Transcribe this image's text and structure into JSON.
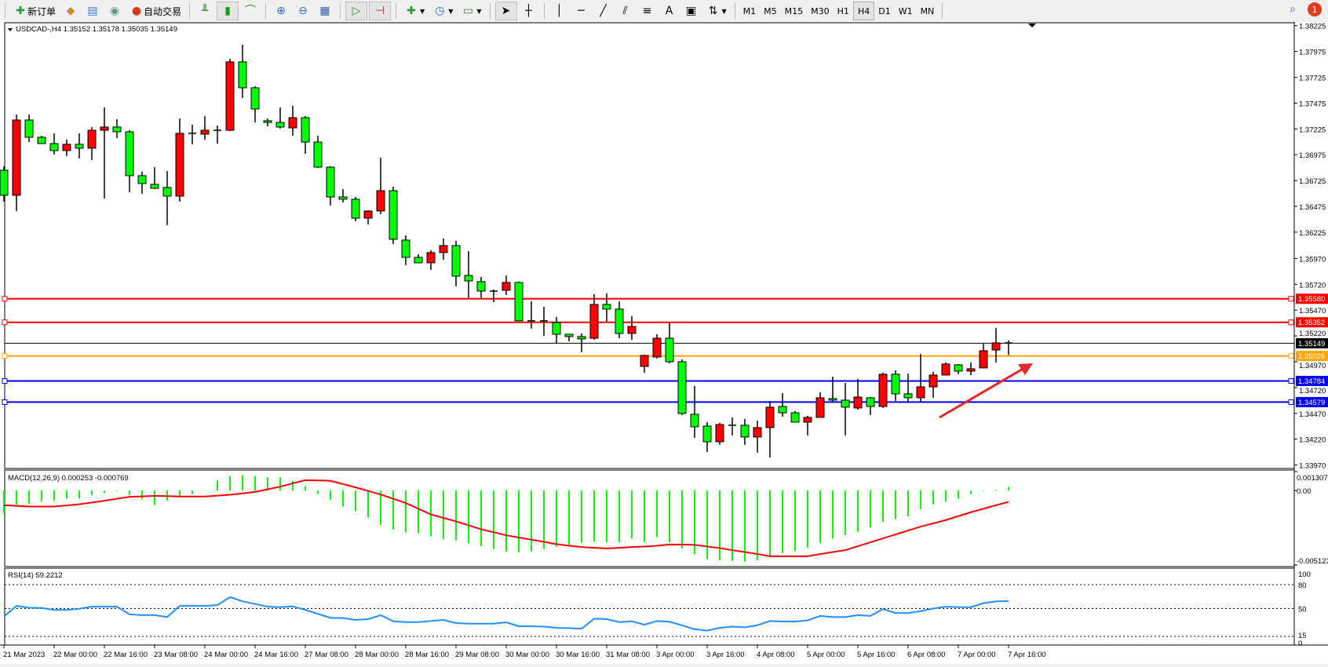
{
  "toolbar": {
    "new_order": "新订单",
    "auto_trade": "自动交易",
    "icons": [
      "new-order-icon",
      "market-watch-icon",
      "navigator-icon",
      "signals-icon",
      "auto-trade-icon",
      "bar-chart-icon",
      "candlestick-icon",
      "line-chart-icon",
      "zoom-in-icon",
      "zoom-out-icon",
      "tile-windows-icon",
      "auto-scroll-icon",
      "chart-shift-icon",
      "indicators-icon",
      "periods-icon",
      "templates-icon",
      "cursor-icon",
      "crosshair-icon",
      "vertical-line-icon",
      "horizontal-line-icon",
      "trendline-icon",
      "equidistant-channel-icon",
      "fibonacci-icon",
      "text-icon",
      "text-label-icon",
      "arrows-icon"
    ],
    "text_tool": "A",
    "timeframes": [
      "M1",
      "M5",
      "M15",
      "M30",
      "H1",
      "H4",
      "D1",
      "W1",
      "MN"
    ],
    "active_timeframe": "H4",
    "notification_count": "1"
  },
  "chart_data": {
    "type": "candlestick",
    "title": "USDCAD-,H4  1.35152 1.35178 1.35035 1.35149",
    "symbol": "USDCAD-",
    "timeframe": "H4",
    "colors": {
      "bull": "#ff0000",
      "bear": "#00ff00",
      "wick": "#000000"
    },
    "ylim": [
      1.3397,
      1.38225
    ],
    "y_ticks": [
      "1.38225",
      "1.37975",
      "1.37725",
      "1.37475",
      "1.37225",
      "1.36975",
      "1.36725",
      "1.36475",
      "1.36225",
      "1.35970",
      "1.35720",
      "1.35470",
      "1.35220",
      "1.34970",
      "1.34720",
      "1.34470",
      "1.34220",
      "1.33970"
    ],
    "x_ticks": [
      {
        "i": 0,
        "label": "21 Mar 2023"
      },
      {
        "i": 4,
        "label": "22 Mar 00:00"
      },
      {
        "i": 8,
        "label": "22 Mar 16:00"
      },
      {
        "i": 12,
        "label": "23 Mar 08:00"
      },
      {
        "i": 16,
        "label": "24 Mar 00:00"
      },
      {
        "i": 20,
        "label": "24 Mar 16:00"
      },
      {
        "i": 24,
        "label": "27 Mar 08:00"
      },
      {
        "i": 28,
        "label": "28 Mar 00:00"
      },
      {
        "i": 32,
        "label": "28 Mar 16:00"
      },
      {
        "i": 36,
        "label": "29 Mar 08:00"
      },
      {
        "i": 40,
        "label": "30 Mar 00:00"
      },
      {
        "i": 44,
        "label": "30 Mar 16:00"
      },
      {
        "i": 48,
        "label": "31 Mar 08:00"
      },
      {
        "i": 52,
        "label": "3 Apr 00:00"
      },
      {
        "i": 56,
        "label": "3 Apr 16:00"
      },
      {
        "i": 60,
        "label": "4 Apr 08:00"
      },
      {
        "i": 64,
        "label": "5 Apr 00:00"
      },
      {
        "i": 68,
        "label": "5 Apr 16:00"
      },
      {
        "i": 72,
        "label": "6 Apr 08:00"
      },
      {
        "i": 76,
        "label": "7 Apr 00:00"
      },
      {
        "i": 80,
        "label": "7 Apr 16:00"
      }
    ],
    "ohlc": [
      [
        1.36825,
        1.36863,
        1.36521,
        1.36582
      ],
      [
        1.36582,
        1.37364,
        1.3643,
        1.37311
      ],
      [
        1.37311,
        1.37364,
        1.37098,
        1.37144
      ],
      [
        1.37144,
        1.37159,
        1.37083,
        1.37083
      ],
      [
        1.37083,
        1.37182,
        1.36977,
        1.37015
      ],
      [
        1.37015,
        1.37121,
        1.36962,
        1.37076
      ],
      [
        1.37076,
        1.37182,
        1.36939,
        1.37038
      ],
      [
        1.37038,
        1.37243,
        1.36924,
        1.37212
      ],
      [
        1.37212,
        1.37433,
        1.36551,
        1.37243
      ],
      [
        1.37243,
        1.37319,
        1.37136,
        1.37197
      ],
      [
        1.37197,
        1.37212,
        1.36612,
        1.36772
      ],
      [
        1.36772,
        1.3681,
        1.36597,
        1.36696
      ],
      [
        1.36688,
        1.36855,
        1.36642,
        1.3665
      ],
      [
        1.36658,
        1.36817,
        1.36293,
        1.36574
      ],
      [
        1.36574,
        1.37326,
        1.36521,
        1.37182
      ],
      [
        1.37182,
        1.37266,
        1.37076,
        1.37174
      ],
      [
        1.37174,
        1.37349,
        1.37121,
        1.37212
      ],
      [
        1.37212,
        1.37258,
        1.37083,
        1.37212
      ],
      [
        1.37212,
        1.37904,
        1.37205,
        1.37874
      ],
      [
        1.37874,
        1.38041,
        1.37524,
        1.37623
      ],
      [
        1.37623,
        1.37638,
        1.37288,
        1.37418
      ],
      [
        1.37304,
        1.37326,
        1.3725,
        1.37288
      ],
      [
        1.37288,
        1.37433,
        1.37228,
        1.37243
      ],
      [
        1.37235,
        1.37448,
        1.37159,
        1.37334
      ],
      [
        1.37334,
        1.37349,
        1.36984,
        1.37098
      ],
      [
        1.37098,
        1.37159,
        1.36848,
        1.36855
      ],
      [
        1.36855,
        1.36863,
        1.36483,
        1.36566
      ],
      [
        1.36566,
        1.36642,
        1.36513,
        1.36544
      ],
      [
        1.36544,
        1.36566,
        1.36331,
        1.36361
      ],
      [
        1.36361,
        1.36437,
        1.363,
        1.3643
      ],
      [
        1.3643,
        1.36946,
        1.36399,
        1.36627
      ],
      [
        1.36627,
        1.36665,
        1.3611,
        1.36156
      ],
      [
        1.36148,
        1.36194,
        1.35905,
        1.35981
      ],
      [
        1.35981,
        1.36012,
        1.35928,
        1.35928
      ],
      [
        1.35928,
        1.3605,
        1.3586,
        1.36027
      ],
      [
        1.36027,
        1.36164,
        1.35958,
        1.36095
      ],
      [
        1.36095,
        1.36141,
        1.357,
        1.35799
      ],
      [
        1.35806,
        1.36042,
        1.35586,
        1.35753
      ],
      [
        1.35746,
        1.35791,
        1.35586,
        1.35654
      ],
      [
        1.35654,
        1.3567,
        1.35548,
        1.35654
      ],
      [
        1.35662,
        1.35806,
        1.35616,
        1.35738
      ],
      [
        1.35738,
        1.35746,
        1.35366,
        1.35366
      ],
      [
        1.35366,
        1.35556,
        1.3529,
        1.35366
      ],
      [
        1.35366,
        1.35502,
        1.35221,
        1.35366
      ],
      [
        1.3535,
        1.35404,
        1.35145,
        1.35236
      ],
      [
        1.35236,
        1.35236,
        1.35168,
        1.35214
      ],
      [
        1.35214,
        1.35244,
        1.35062,
        1.35191
      ],
      [
        1.35198,
        1.35624,
        1.35183,
        1.35525
      ],
      [
        1.35525,
        1.35632,
        1.35358,
        1.3548
      ],
      [
        1.3548,
        1.35556,
        1.35198,
        1.35244
      ],
      [
        1.35244,
        1.35411,
        1.35183,
        1.35312
      ],
      [
        1.34925,
        1.35039,
        1.34864,
        1.35031
      ],
      [
        1.35016,
        1.35236,
        1.35001,
        1.35198
      ],
      [
        1.35198,
        1.3535,
        1.34955,
        1.3497
      ],
      [
        1.3497,
        1.34993,
        1.34454,
        1.34469
      ],
      [
        1.34461,
        1.34735,
        1.34233,
        1.3434
      ],
      [
        1.34347,
        1.34385,
        1.34096,
        1.34195
      ],
      [
        1.34195,
        1.34378,
        1.34165,
        1.34362
      ],
      [
        1.34355,
        1.34431,
        1.34256,
        1.34355
      ],
      [
        1.34355,
        1.34416,
        1.34165,
        1.34241
      ],
      [
        1.34241,
        1.344,
        1.34089,
        1.34332
      ],
      [
        1.34332,
        1.3459,
        1.34043,
        1.3453
      ],
      [
        1.34537,
        1.34666,
        1.34438,
        1.34476
      ],
      [
        1.34476,
        1.34492,
        1.34385,
        1.34385
      ],
      [
        1.34385,
        1.34446,
        1.34256,
        1.34431
      ],
      [
        1.34431,
        1.34674,
        1.34431,
        1.34621
      ],
      [
        1.34613,
        1.34826,
        1.34583,
        1.34598
      ],
      [
        1.34598,
        1.34765,
        1.34256,
        1.3453
      ],
      [
        1.34522,
        1.34803,
        1.34507,
        1.34628
      ],
      [
        1.34621,
        1.34628,
        1.34454,
        1.34537
      ],
      [
        1.34537,
        1.34864,
        1.34522,
        1.34849
      ],
      [
        1.34849,
        1.34887,
        1.3459,
        1.34659
      ],
      [
        1.34659,
        1.34856,
        1.34583,
        1.34621
      ],
      [
        1.34621,
        1.35046,
        1.34583,
        1.34727
      ],
      [
        1.34727,
        1.34872,
        1.34621,
        1.34841
      ],
      [
        1.34841,
        1.34963,
        1.34841,
        1.34948
      ],
      [
        1.3494,
        1.34948,
        1.34849,
        1.34879
      ],
      [
        1.34879,
        1.34963,
        1.34841,
        1.34902
      ],
      [
        1.3491,
        1.35153,
        1.3491,
        1.35077
      ],
      [
        1.35084,
        1.35297,
        1.34963,
        1.35153
      ],
      [
        1.35152,
        1.35178,
        1.35035,
        1.35149
      ]
    ],
    "current_price": {
      "value": 1.35149,
      "label": "1.35149",
      "color": "#000000"
    },
    "hlines": [
      {
        "value": 1.3558,
        "label": "1.35580",
        "color": "#ff0000"
      },
      {
        "value": 1.35352,
        "label": "1.35352",
        "color": "#ff0000"
      },
      {
        "value": 1.35026,
        "label": "1.35026",
        "color": "#ffa500"
      },
      {
        "value": 1.34784,
        "label": "1.34784",
        "color": "#0000ff"
      },
      {
        "value": 1.34579,
        "label": "1.34579",
        "color": "#0000ff"
      }
    ],
    "annotation_arrow": {
      "color": "#e8262a",
      "direction": "up-right"
    },
    "macd": {
      "title": "MACD(12,26,9) 0.000253 -0.000769",
      "ylim": [
        -0.005123,
        0.001307
      ],
      "y_ticks": [
        "0.001307",
        "0.00",
        "-0.005123"
      ],
      "hist_color": "#00ff00",
      "signal_color": "#ff0000",
      "histogram": [
        -0.00158,
        -0.00095,
        -0.0009,
        -0.00074,
        -0.00068,
        -0.00054,
        -0.00054,
        -0.00031,
        -0.00016,
        -5e-05,
        -0.00031,
        -0.00059,
        -0.001,
        -0.00068,
        -0.00038,
        -0.00023,
        -2e-05,
        0.0007,
        0.001,
        0.00106,
        0.001,
        0.00092,
        0.00092,
        0.00067,
        0.00031,
        -0.00023,
        -0.00063,
        -0.0011,
        -0.0014,
        -0.00185,
        -0.00236,
        -0.00268,
        -0.00288,
        -0.00293,
        -0.00315,
        -0.00333,
        -0.00344,
        -0.00365,
        -0.00383,
        -0.00401,
        -0.00419,
        -0.00425,
        -0.00419,
        -0.00401,
        -0.00387,
        -0.00376,
        -0.0036,
        -0.00353,
        -0.00356,
        -0.00356,
        -0.00329,
        -0.00353,
        -0.0032,
        -0.00356,
        -0.00398,
        -0.00437,
        -0.00473,
        -0.00479,
        -0.00484,
        -0.00488,
        -0.00479,
        -0.00452,
        -0.0043,
        -0.00416,
        -0.00392,
        -0.0036,
        -0.00329,
        -0.00306,
        -0.00283,
        -0.00254,
        -0.00216,
        -0.00196,
        -0.00178,
        -0.00128,
        -0.00095,
        -0.00074,
        -0.00056,
        -0.00023,
        -5e-05,
        5e-05,
        0.000253
      ],
      "signal": [
        -0.00101,
        -0.00105,
        -0.0011,
        -0.0011,
        -0.0011,
        -0.00102,
        -0.00094,
        -0.00082,
        -0.0007,
        -0.00056,
        -0.00043,
        -0.0004,
        -0.00036,
        -0.00038,
        -0.00041,
        -0.00041,
        -0.00041,
        -0.00035,
        -0.00029,
        -0.00019,
        -9e-05,
        9e-05,
        0.00027,
        0.0005,
        0.00072,
        0.0007,
        0.00067,
        0.00045,
        0.00022,
        -2e-05,
        -0.00027,
        -0.00056,
        -0.00086,
        -0.00125,
        -0.00164,
        -0.00188,
        -0.00212,
        -0.00239,
        -0.00266,
        -0.00287,
        -0.00308,
        -0.00323,
        -0.00338,
        -0.00353,
        -0.00369,
        -0.00379,
        -0.00389,
        -0.00394,
        -0.00398,
        -0.00394,
        -0.00389,
        -0.00385,
        -0.0038,
        -0.00371,
        -0.00372,
        -0.00374,
        -0.00385,
        -0.00396,
        -0.0041,
        -0.00423,
        -0.00437,
        -0.00452,
        -0.00452,
        -0.00452,
        -0.00452,
        -0.00437,
        -0.00423,
        -0.0041,
        -0.00383,
        -0.00356,
        -0.00329,
        -0.00302,
        -0.00275,
        -0.00248,
        -0.00226,
        -0.00203,
        -0.00176,
        -0.00149,
        -0.00125,
        -0.00101,
        -0.000769
      ]
    },
    "rsi": {
      "title": "RSI(14) 59.2212",
      "ylim": [
        0,
        100
      ],
      "levels": [
        80,
        50,
        15
      ],
      "y_ticks": [
        "100",
        "80",
        "50",
        "15",
        "0"
      ],
      "color": "#1e90ff",
      "values": [
        40,
        53.3,
        51,
        50.7,
        48.3,
        48.3,
        49.7,
        52.3,
        52.3,
        52.3,
        42.7,
        41.7,
        41.7,
        39.3,
        53.3,
        53.3,
        53.3,
        54.3,
        64.3,
        59,
        55.7,
        52.3,
        51.7,
        52.7,
        48.3,
        43.3,
        38.3,
        38,
        35.7,
        36.7,
        41.7,
        34,
        33,
        33,
        34.3,
        35.7,
        31.7,
        31,
        31,
        31,
        32.7,
        27.7,
        27.7,
        27.3,
        25.7,
        25.3,
        24.7,
        37.3,
        36.7,
        33,
        34,
        29.7,
        34.3,
        33.3,
        29,
        24,
        22.3,
        25.7,
        27.3,
        26.3,
        29,
        34.3,
        33.7,
        33.7,
        35,
        40.7,
        39.3,
        39.3,
        41.7,
        40.7,
        49.3,
        44.3,
        44.3,
        46.7,
        50,
        52.3,
        51.7,
        51.7,
        56.7,
        59,
        59.2212
      ]
    }
  }
}
